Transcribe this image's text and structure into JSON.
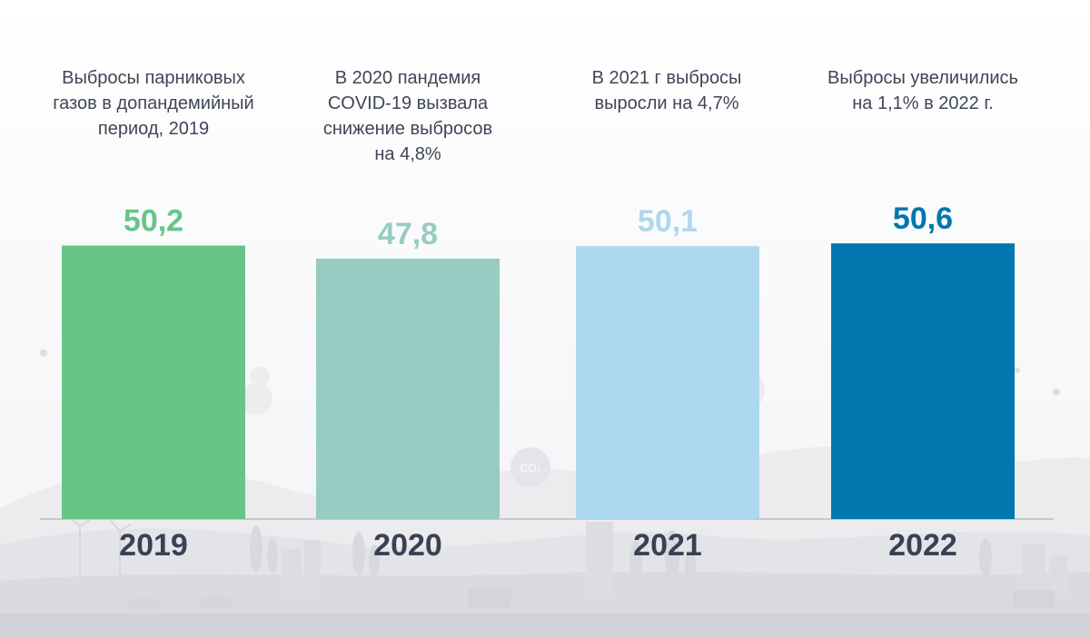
{
  "captions": [
    [
      "Выбросы парниковых",
      "газов в допандемийный",
      "период, 2019"
    ],
    [
      "В 2020 пандемия",
      "COVID-19 вызвала",
      "снижение выбросов",
      "на 4,8%"
    ],
    [
      "В 2021 г выбросы",
      "выросли на 4,7%"
    ],
    [
      "Выбросы увеличились",
      "на 1,1% в 2022 г."
    ]
  ],
  "background_label": "CO₂",
  "chart_data": {
    "type": "bar",
    "categories": [
      "2019",
      "2020",
      "2021",
      "2022"
    ],
    "values": [
      50.2,
      47.8,
      50.1,
      50.6
    ],
    "value_labels": [
      "50,2",
      "47,8",
      "50,1",
      "50,6"
    ],
    "colors": [
      "#67c587",
      "#98cbc1",
      "#aed8ef",
      "#0077ae"
    ],
    "axis_color": "#c8c8ce",
    "category_label_color": "#3b4154",
    "title": "",
    "xlabel": "",
    "ylabel": "",
    "ylim": [
      0,
      56.3
    ],
    "grid": false,
    "legend": "none"
  }
}
